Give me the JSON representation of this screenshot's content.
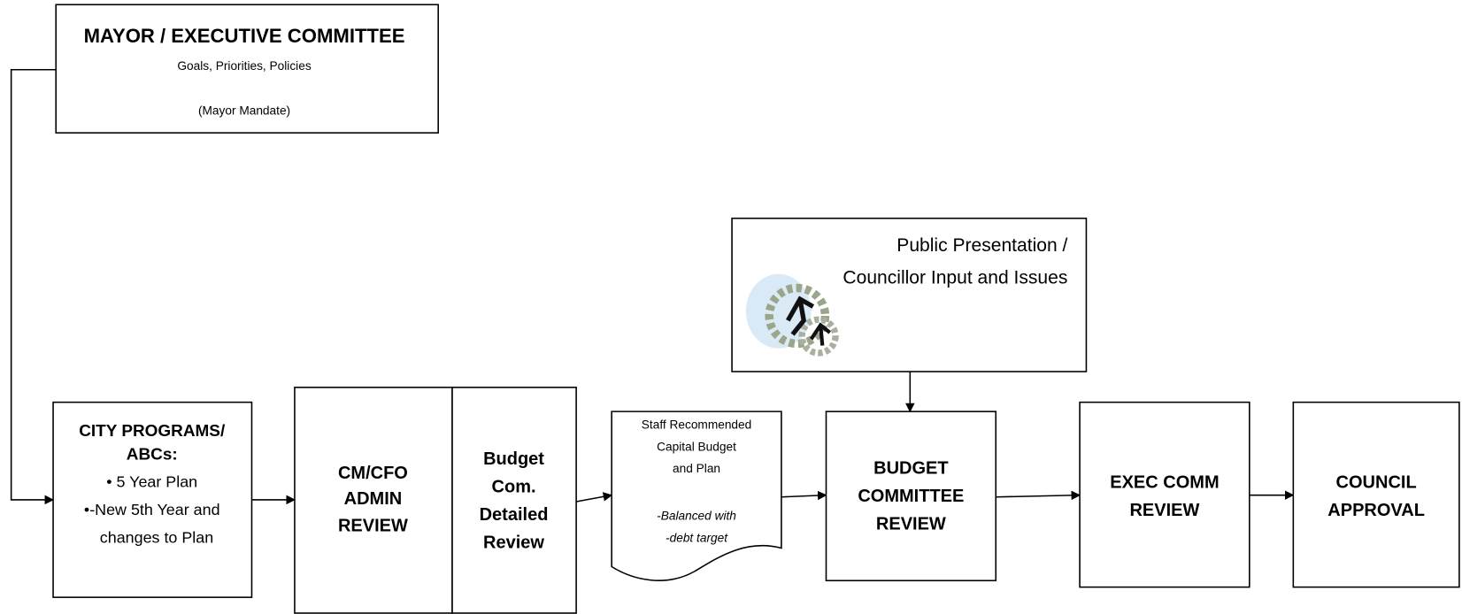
{
  "nodes": [
    {
      "id": "mayor",
      "lines": [
        "MAYOR / EXECUTIVE COMMITTEE",
        "Goals, Priorities, Policies",
        "(Mayor Mandate)"
      ]
    },
    {
      "id": "public",
      "lines": [
        "Public Presentation /",
        "Councillor Input and Issues"
      ]
    },
    {
      "id": "programs",
      "lines": [
        "CITY PROGRAMS/",
        "ABCs:",
        "• 5 Year Plan",
        "•-New 5th Year and",
        "changes to Plan"
      ]
    },
    {
      "id": "cmcfo",
      "lines": [
        "CM/CFO",
        "ADMIN",
        "REVIEW"
      ]
    },
    {
      "id": "budgetcom",
      "lines": [
        "Budget",
        "Com.",
        "Detailed",
        "Review"
      ]
    },
    {
      "id": "staff",
      "lines": [
        "Staff Recommended",
        "Capital Budget",
        "and Plan",
        "-Balanced with",
        "-debt target"
      ]
    },
    {
      "id": "committee",
      "lines": [
        "BUDGET",
        "COMMITTEE",
        "REVIEW"
      ]
    },
    {
      "id": "exec",
      "lines": [
        "EXEC COMM",
        "REVIEW"
      ]
    },
    {
      "id": "council",
      "lines": [
        "COUNCIL",
        "APPROVAL"
      ]
    }
  ]
}
